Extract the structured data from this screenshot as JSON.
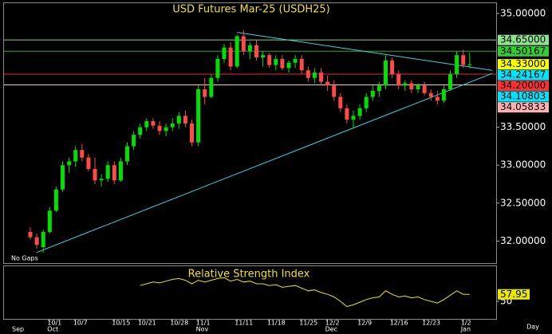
{
  "chart_data": {
    "type": "candlestick",
    "title": "USD Futures Mar-25  (USDH25)",
    "note": "No Gaps",
    "x_unit_label": "Day",
    "categories": [
      null,
      null,
      null,
      "10/1",
      null,
      null,
      null,
      "10/7",
      null,
      null,
      null,
      null,
      null,
      "10/15",
      null,
      null,
      null,
      "10/21",
      null,
      null,
      null,
      null,
      "10/28",
      null,
      null,
      null,
      "11/1",
      null,
      null,
      null,
      null,
      null,
      "11/11",
      null,
      null,
      null,
      null,
      "11/18",
      null,
      null,
      null,
      null,
      "11/25",
      null,
      null,
      null,
      "12/2",
      null,
      null,
      null,
      null,
      "12/9",
      null,
      null,
      null,
      null,
      "12/16",
      null,
      null,
      null,
      null,
      "12/23",
      null,
      null,
      null,
      null,
      null,
      "1/2",
      null
    ],
    "month_categories": [
      "Sep",
      null,
      null,
      "Oct",
      null,
      null,
      null,
      null,
      null,
      null,
      null,
      null,
      null,
      null,
      null,
      null,
      null,
      null,
      null,
      null,
      null,
      null,
      null,
      null,
      null,
      null,
      "Nov",
      null,
      null,
      null,
      null,
      null,
      null,
      null,
      null,
      null,
      null,
      null,
      null,
      null,
      null,
      null,
      null,
      null,
      null,
      null,
      "Dec",
      null,
      null,
      null,
      null,
      null,
      null,
      null,
      null,
      null,
      null,
      null,
      null,
      null,
      null,
      null,
      null,
      null,
      null,
      null,
      null,
      "Jan",
      null
    ],
    "open": [
      32.12,
      32.05,
      31.92,
      32.12,
      32.4,
      32.68,
      33.0,
      33.05,
      33.2,
      33.1,
      32.95,
      32.8,
      32.82,
      33.0,
      32.8,
      33.05,
      33.25,
      33.4,
      33.5,
      33.58,
      33.52,
      33.45,
      33.5,
      33.55,
      33.65,
      33.55,
      33.3,
      34.0,
      33.9,
      34.15,
      34.4,
      34.55,
      34.3,
      34.7,
      34.5,
      34.58,
      34.42,
      34.45,
      34.32,
      34.4,
      34.28,
      34.35,
      34.4,
      34.25,
      34.15,
      34.22,
      34.1,
      34.05,
      33.9,
      33.75,
      33.6,
      33.65,
      33.75,
      33.9,
      33.98,
      34.05,
      34.38,
      34.2,
      34.05,
      34.08,
      34.0,
      34.05,
      33.95,
      33.9,
      33.85,
      34.0,
      34.2,
      34.45,
      34.32
    ],
    "high": [
      32.18,
      32.1,
      32.15,
      32.45,
      32.72,
      33.05,
      33.1,
      33.25,
      33.28,
      33.15,
      33.1,
      32.88,
      33.05,
      33.05,
      33.1,
      33.3,
      33.45,
      33.55,
      33.62,
      33.62,
      33.58,
      33.55,
      33.62,
      33.7,
      33.72,
      33.6,
      34.05,
      34.15,
      34.2,
      34.45,
      34.6,
      34.62,
      34.72,
      34.78,
      34.62,
      34.65,
      34.5,
      34.48,
      34.45,
      34.45,
      34.38,
      34.45,
      34.45,
      34.3,
      34.28,
      34.28,
      34.18,
      34.12,
      33.95,
      33.8,
      33.72,
      33.8,
      33.95,
      34.05,
      34.1,
      34.45,
      34.42,
      34.25,
      34.12,
      34.12,
      34.08,
      34.1,
      34.0,
      33.98,
      34.05,
      34.25,
      34.5,
      34.52,
      34.48
    ],
    "low": [
      32.02,
      31.9,
      31.85,
      32.1,
      32.38,
      32.65,
      32.9,
      32.98,
      33.05,
      32.92,
      32.75,
      32.72,
      32.78,
      32.75,
      32.78,
      33.0,
      33.2,
      33.35,
      33.45,
      33.48,
      33.4,
      33.38,
      33.45,
      33.48,
      33.5,
      33.25,
      33.25,
      33.8,
      33.88,
      34.1,
      34.35,
      34.25,
      34.28,
      34.45,
      34.4,
      34.38,
      34.3,
      34.28,
      34.25,
      34.25,
      34.22,
      34.28,
      34.2,
      34.1,
      34.08,
      34.05,
      33.98,
      33.85,
      33.7,
      33.55,
      33.48,
      33.6,
      33.7,
      33.85,
      33.9,
      34.0,
      34.15,
      34.0,
      33.98,
      33.95,
      33.95,
      33.92,
      33.85,
      33.8,
      33.82,
      33.98,
      34.15,
      34.28,
      34.28
    ],
    "close": [
      32.05,
      31.95,
      32.12,
      32.4,
      32.68,
      33.0,
      33.05,
      33.2,
      33.1,
      32.95,
      32.8,
      32.82,
      33.0,
      32.8,
      33.05,
      33.25,
      33.4,
      33.5,
      33.58,
      33.52,
      33.45,
      33.5,
      33.55,
      33.65,
      33.55,
      33.3,
      34.0,
      33.9,
      34.15,
      34.4,
      34.55,
      34.3,
      34.7,
      34.5,
      34.58,
      34.42,
      34.45,
      34.32,
      34.4,
      34.28,
      34.35,
      34.4,
      34.25,
      34.15,
      34.22,
      34.1,
      34.05,
      33.9,
      33.75,
      33.6,
      33.65,
      33.75,
      33.9,
      33.98,
      34.05,
      34.38,
      34.2,
      34.05,
      34.08,
      34.0,
      34.05,
      33.95,
      33.9,
      33.85,
      34.0,
      34.2,
      34.45,
      34.32,
      34.33
    ],
    "up_color": "#00e000",
    "down_color": "#ff4a4a",
    "ylim": [
      31.71,
      35.135
    ],
    "yticks": [
      {
        "value": 32,
        "label": "32.00000"
      },
      {
        "value": 32.5,
        "label": "32.50000"
      },
      {
        "value": 33,
        "label": "33.00000"
      },
      {
        "value": 33.5,
        "label": "33.50000"
      },
      {
        "value": 35,
        "label": "35.00000"
      }
    ],
    "levels": [
      {
        "value": 34.65,
        "label": "34.65000",
        "line_color": "#7fd87f",
        "label_color": "#8fe08f"
      },
      {
        "value": 34.50167,
        "label": "34.50167",
        "line_color": "#22b022",
        "label_color": "#33cc33"
      },
      {
        "value": 34.33,
        "label": "34.33000",
        "label_color": "#ffff00"
      },
      {
        "value": 34.24167,
        "label": "34.24167",
        "label_color": "#00e5ff"
      },
      {
        "value": 34.2,
        "label": "34.20000",
        "line_color": "#d83030",
        "label_color": "#ff3030"
      },
      {
        "value": 34.10803,
        "label": "34.10803",
        "label_color": "#00e5ff"
      },
      {
        "value": 34.05833,
        "label": "34.05833",
        "line_color": "#f0d0a8",
        "label_color": "#ffb0b0"
      }
    ],
    "trendlines": [
      {
        "x": [
          1,
          71.5
        ],
        "y": [
          31.85,
          34.21
        ],
        "color": "#33d6e6"
      },
      {
        "x": [
          32,
          71.5
        ],
        "y": [
          34.75,
          34.25
        ],
        "color": "#33d6e6"
      }
    ],
    "indicator": {
      "type": "line",
      "title": "Relative Strength Index",
      "color": "#e8e800",
      "values": [
        null,
        null,
        null,
        null,
        null,
        null,
        null,
        null,
        null,
        null,
        null,
        null,
        null,
        null,
        null,
        null,
        null,
        68,
        70,
        72,
        71,
        73,
        75,
        76,
        74,
        70,
        74,
        72,
        74,
        76,
        77,
        73,
        75,
        72,
        73,
        70,
        70,
        68,
        69,
        66,
        67,
        68,
        65,
        62,
        63,
        60,
        58,
        55,
        50,
        44,
        46,
        49,
        52,
        54,
        55,
        62,
        58,
        55,
        56,
        54,
        55,
        52,
        50,
        48,
        52,
        57,
        62,
        58,
        57.95
      ],
      "ylim": [
        30,
        90
      ],
      "yticks": [
        50
      ]
    }
  }
}
